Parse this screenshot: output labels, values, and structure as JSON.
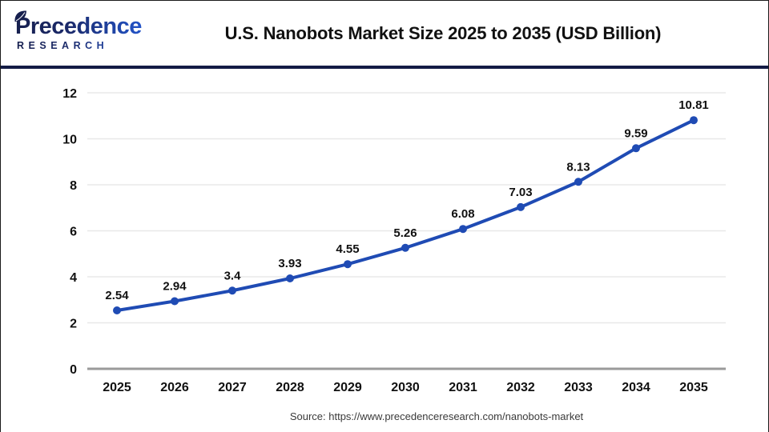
{
  "header": {
    "logo_line1": "Precedence",
    "logo_line2": "RESEARCH",
    "title": "U.S. Nanobots Market Size 2025 to 2035  (USD Billion)"
  },
  "chart_data": {
    "type": "line",
    "title": "U.S. Nanobots Market Size 2025 to 2035 (USD Billion)",
    "categories": [
      "2025",
      "2026",
      "2027",
      "2028",
      "2029",
      "2030",
      "2031",
      "2032",
      "2033",
      "2034",
      "2035"
    ],
    "values": [
      2.54,
      2.94,
      3.4,
      3.93,
      4.55,
      5.26,
      6.08,
      7.03,
      8.13,
      9.59,
      10.81
    ],
    "point_labels": [
      "2.54",
      "2.94",
      "3.4",
      "3.93",
      "4.55",
      "5.26",
      "6.08",
      "7.03",
      "8.13",
      "9.59",
      "10.81"
    ],
    "xlabel": "",
    "ylabel": "",
    "ylim": [
      0,
      12
    ],
    "yticks": [
      0,
      2,
      4,
      6,
      8,
      10,
      12
    ],
    "grid": true,
    "legend_position": "none",
    "line_color": "#1f4bb4",
    "marker_color": "#1f4bb4"
  },
  "footer": {
    "source": "Source: https://www.precedenceresearch.com/nanobots-market"
  },
  "colors": {
    "divider_navy": "#131b45",
    "grid_line": "#e8e8e8",
    "zero_axis": "#9a9a9a",
    "tick_label": "#111111",
    "data_label": "#111111",
    "source_text": "#3a3a3a",
    "logo_dark": "#161f4e",
    "logo_blue": "#2563eb"
  }
}
